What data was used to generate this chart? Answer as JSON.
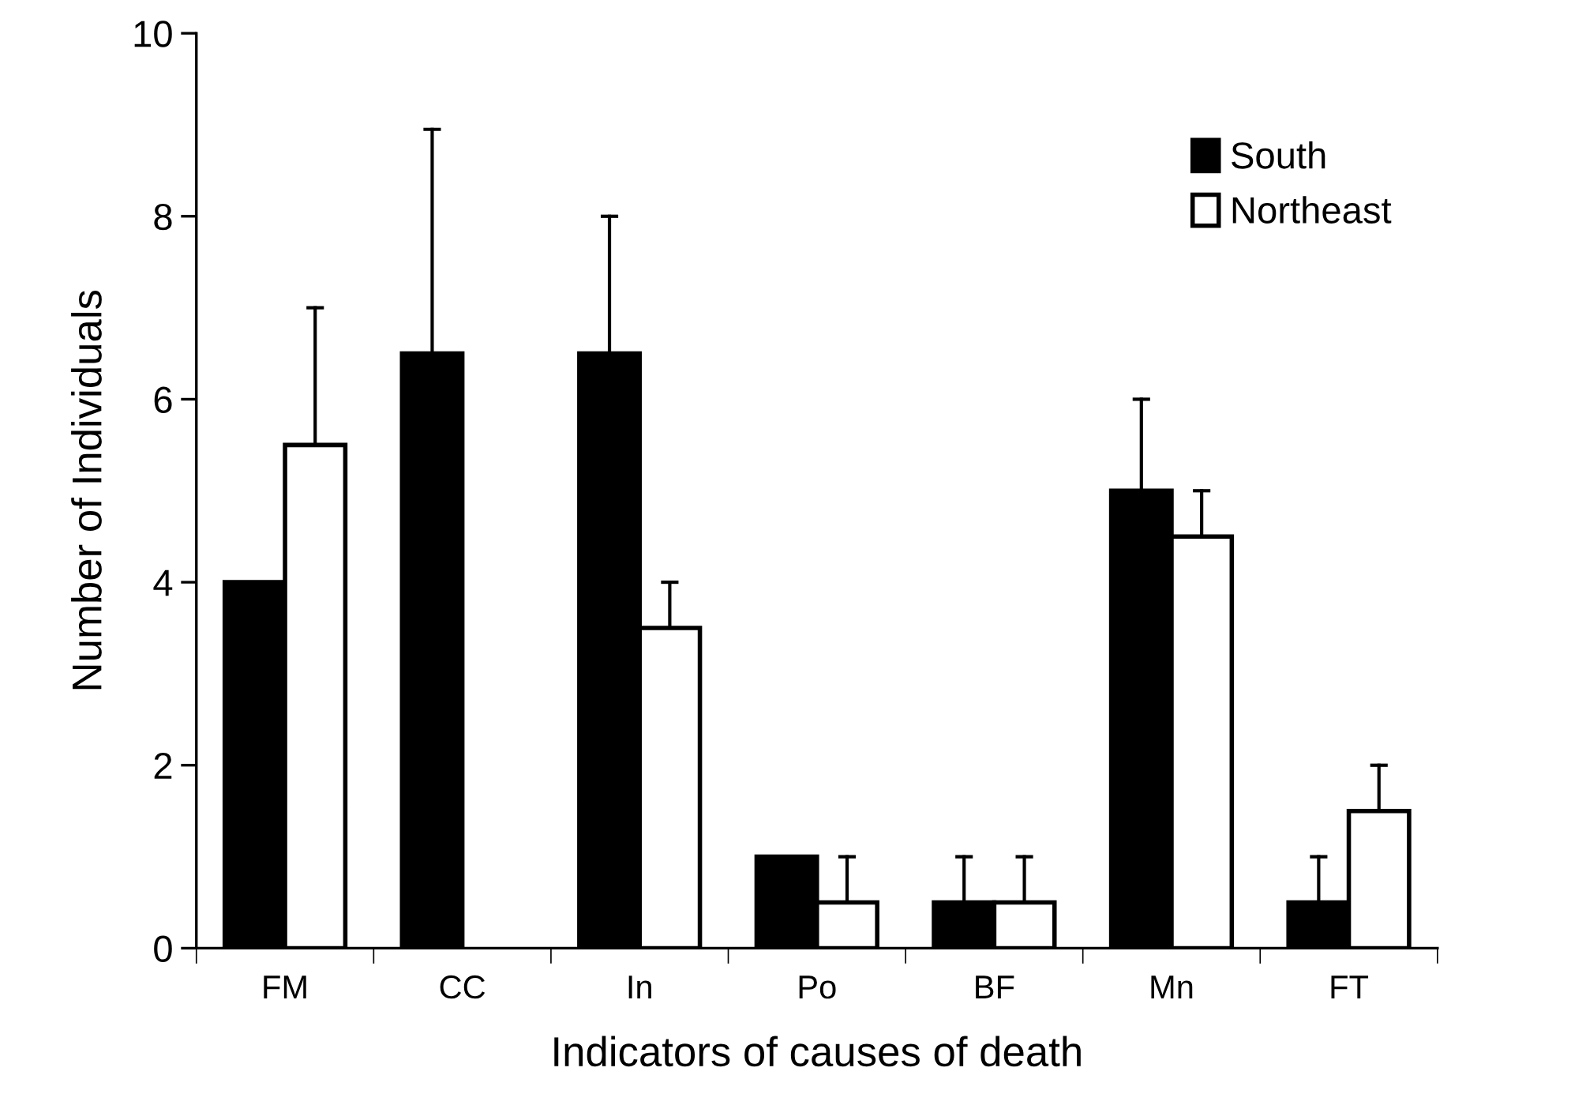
{
  "chart_data": {
    "type": "bar",
    "xlabel": "Indicators of causes of death",
    "ylabel": "Number of Individuals",
    "categories": [
      "FM",
      "CC",
      "In",
      "Po",
      "BF",
      "Mn",
      "FT"
    ],
    "series": [
      {
        "name": "South",
        "color": "#000000",
        "values": [
          4,
          6.5,
          6.5,
          1,
          0.5,
          5,
          0.5
        ],
        "errors": [
          null,
          [
            6.5,
            8.95
          ],
          [
            6.5,
            8
          ],
          null,
          [
            0.5,
            1
          ],
          [
            5,
            6
          ],
          [
            0.5,
            1
          ]
        ]
      },
      {
        "name": "Northeast",
        "color": "#ffffff",
        "values": [
          5.5,
          0,
          3.5,
          0.5,
          0.5,
          4.5,
          1.5
        ],
        "errors": [
          [
            5.5,
            7
          ],
          null,
          [
            3.5,
            4
          ],
          [
            0.5,
            1
          ],
          [
            0.5,
            1
          ],
          [
            4.5,
            5
          ],
          [
            1.5,
            2
          ]
        ]
      }
    ],
    "ylim": [
      0,
      10
    ],
    "yticks": [
      0,
      2,
      4,
      6,
      8,
      10
    ],
    "grid": false,
    "legend": "top right"
  }
}
